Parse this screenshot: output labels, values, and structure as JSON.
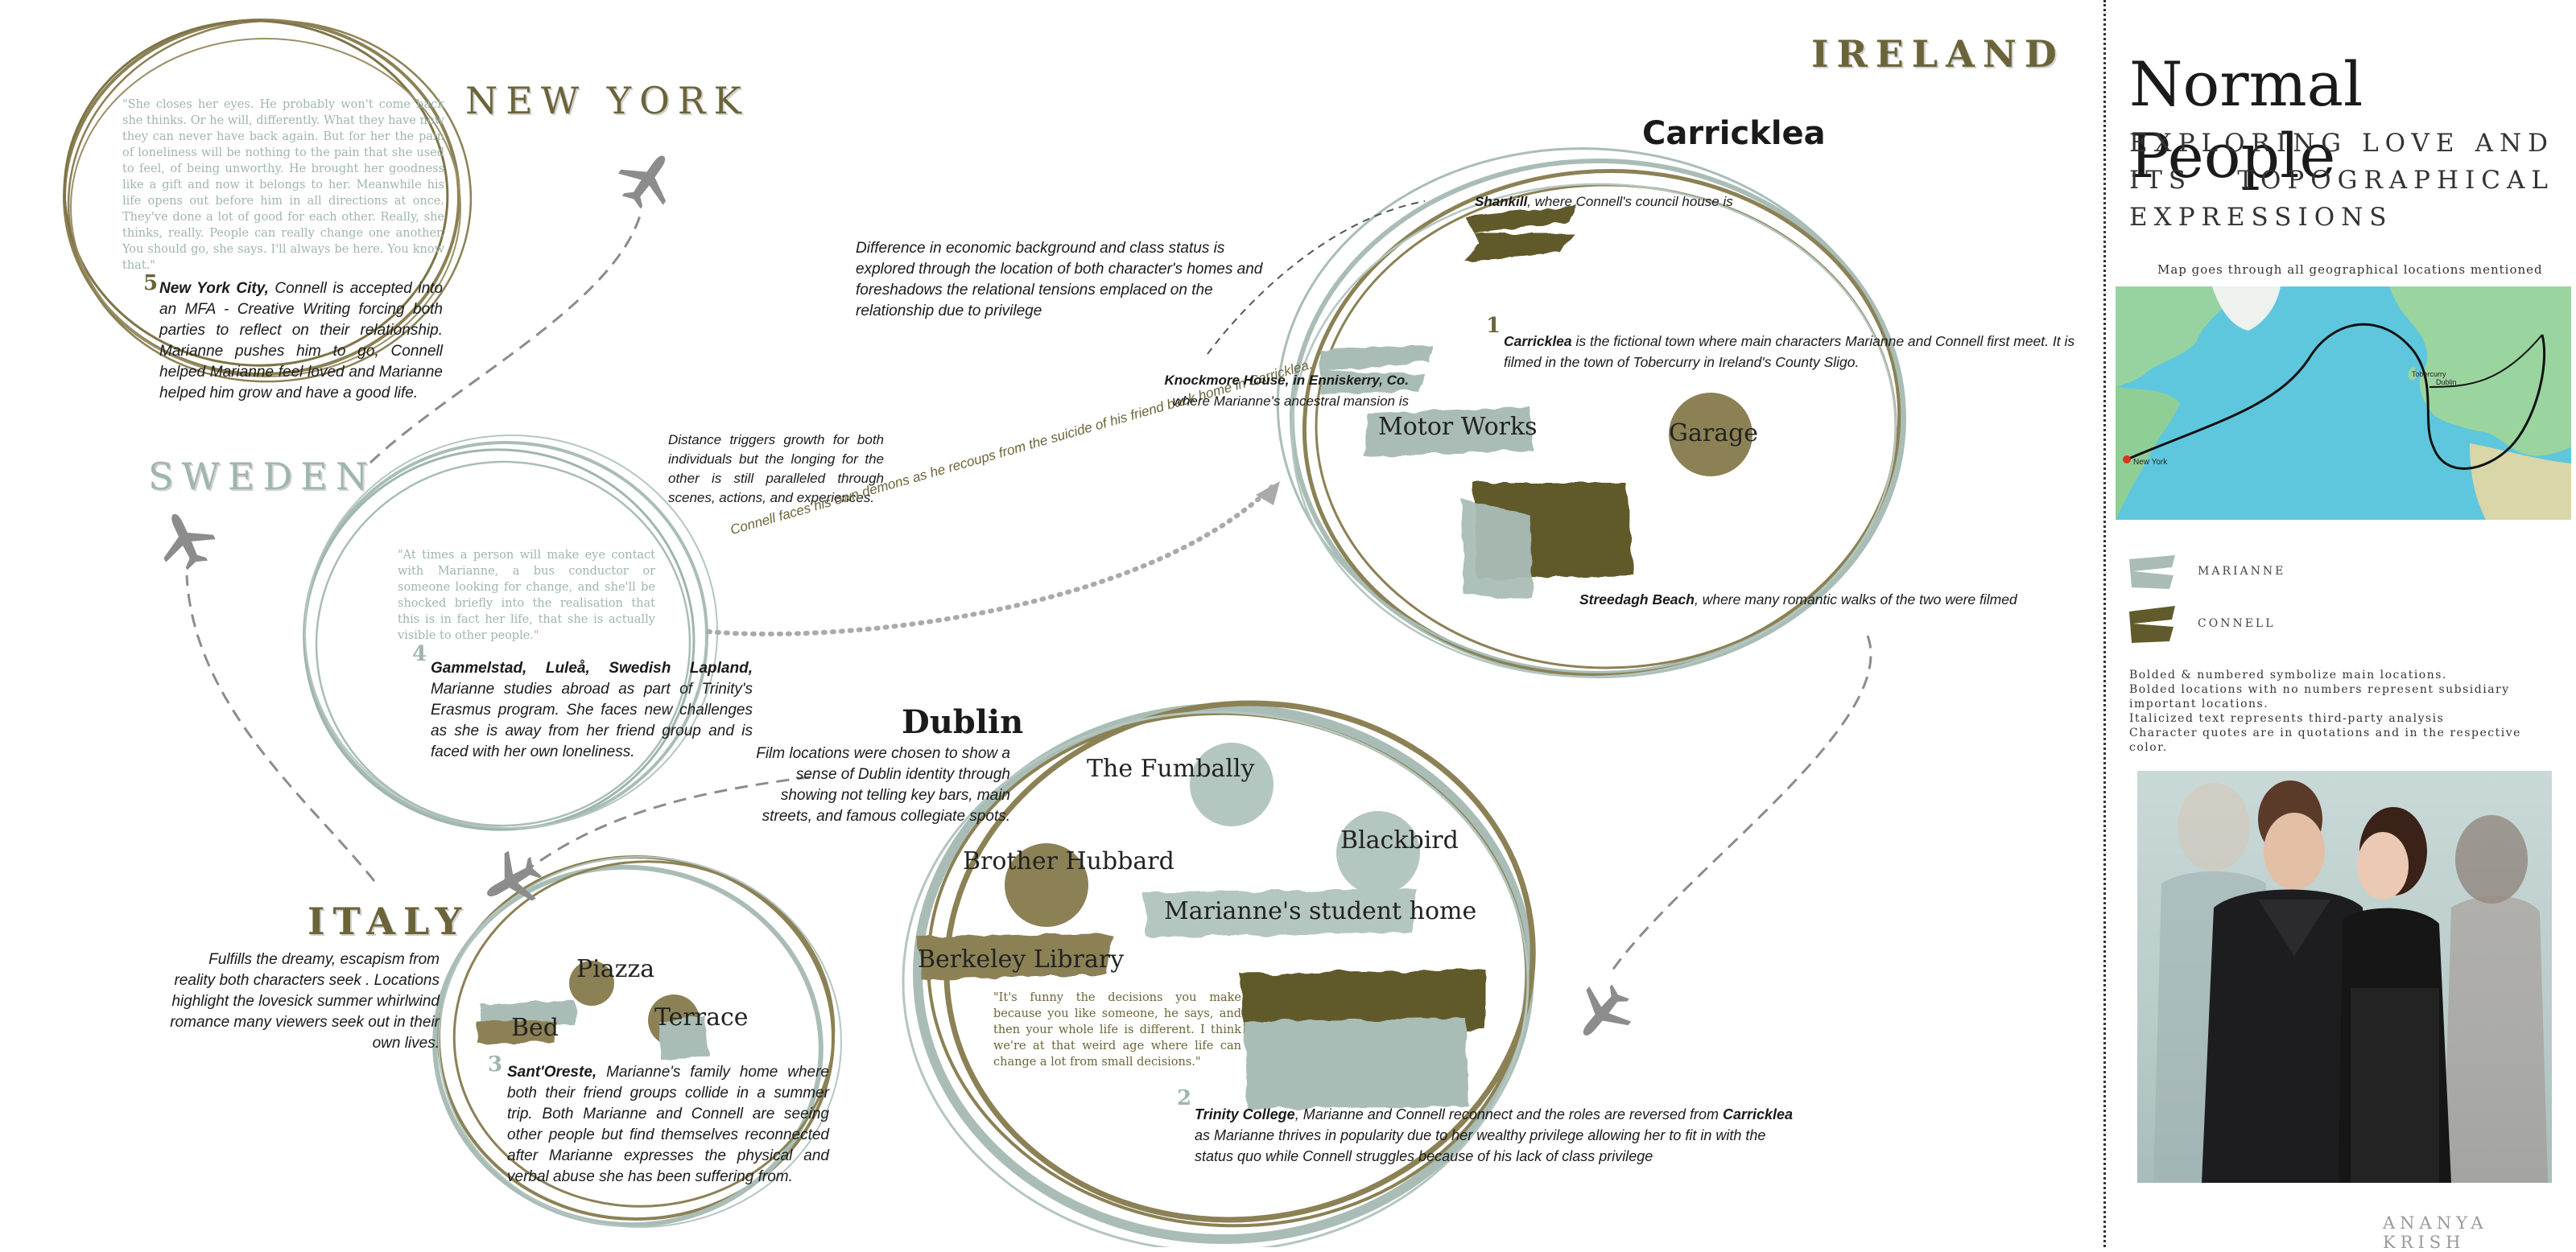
{
  "sidebar": {
    "title": "Normal People",
    "subtitle": "EXPLORING LOVE AND ITS TOPOGRAPHICAL EXPRESSIONS",
    "map_caption": "Map goes through all geographical locations mentioned",
    "map_labels": {
      "new_york": "New York",
      "dublin": "Dublin",
      "tobercurry": "Tobercurry"
    },
    "legend": [
      {
        "label": "MARIANNE",
        "color": "#a9bdb6"
      },
      {
        "label": "CONNELL",
        "color": "#615a2c"
      }
    ],
    "notes": [
      "Bolded & numbered symbolize main locations.",
      "Bolded locations with no numbers represent subsidiary important locations.",
      "Italicized text represents third-party analysis",
      "Character quotes are in quotations and in the respective color."
    ],
    "author": "ANANYA KRISH"
  },
  "ireland": {
    "label": "IRELAND"
  },
  "carricklea": {
    "title": "Carricklea",
    "analysis": "Difference in economic background and class status is explored through the location of both character's homes and foreshadows the relational tensions emplaced on the relationship due to privilege",
    "shankill_bold": "Shankill",
    "shankill_rest": ", where Connell's council house is",
    "knockmore_bold": "Knockmore House, in Enniskerry, Co.",
    "knockmore_rest": "where Marianne's ancestral mansion is",
    "number": "1",
    "main_bold": "Carricklea",
    "main_rest": " is the fictional town where main characters Marianne and Connell first meet. It is filmed in the town of Tobercurry in Ireland's County Sligo.",
    "motor_works": "Motor Works",
    "garage": "Garage",
    "streedagh_bold": "Streedagh Beach",
    "streedagh_rest": ", where many romantic walks of the two were filmed"
  },
  "new_york": {
    "label": "NEW YORK",
    "quote": "\"She closes her eyes. He probably won't come back she thinks. Or he will, differently. What they have now they can never have back again. But for her the pain of loneliness will be nothing to the pain that she used to feel, of being unworthy. He brought her goodness like a gift and now it belongs to her. Meanwhile his life opens out before him in all directions at once. They've done a lot of good for each other. Really, she thinks, really. People can really change one another. You should go, she says. I'll always be here. You know that.\"",
    "number": "5",
    "bold": "New York City,",
    "rest": " Connell is accepted into an MFA - Creative Writing forcing both parties to reflect on their relationship. Marianne pushes him to go, Connell helped Marianne feel loved and Marianne helped him grow and have a good life."
  },
  "sweden": {
    "label": "SWEDEN",
    "quote": "\"At times a person will make eye contact with Marianne, a bus conductor or someone looking for change, and she'll be shocked briefly into the realisation that this is in fact her life, that she is actually visible to other people.\"",
    "number": "4",
    "bold": "Gammelstad, Luleå, Swedish Lapland,",
    "rest": " Marianne studies abroad as part of Trinity's Erasmus program. She faces new challenges as she is away from her friend group and is faced with her own loneliness.",
    "distance_note": "Distance triggers growth for both individuals but the longing for the other is still paralleled through scenes, actions, and experiences.",
    "connell_path": "Connell faces his own demons as he recoups from the suicide of his friend back home in Carricklea."
  },
  "italy": {
    "label": "ITALY",
    "analysis": "Fulfills the dreamy, escapism from reality both characters seek . Locations highlight the lovesick summer whirlwind romance many viewers seek out in their own lives.",
    "piazza": "Piazza",
    "terrace": "Terrace",
    "bed": "Bed",
    "number": "3",
    "bold": "Sant'Oreste,",
    "rest": " Marianne's family home where both their friend groups collide in a summer trip. Both Marianne and Connell are seeing other people but find themselves reconnected after Marianne expresses the physical and verbal abuse she has been suffering from."
  },
  "dublin": {
    "title": "Dublin",
    "analysis": "Film locations were chosen to show a sense of Dublin identity through showing not telling key bars, main streets, and famous collegiate spots.",
    "fumbally": "The Fumbally",
    "blackbird": "Blackbird",
    "brother_hubbard": "Brother Hubbard",
    "student_home": "Marianne's student home",
    "berkeley": "Berkeley Library",
    "quote": "\"It's funny the decisions you make because you like someone, he says, and then your whole life is different. I think we're at that weird age where life can change a lot from small decisions.\"",
    "number": "2",
    "bold": "Trinity College",
    "rest1": ", Marianne and Connell reconnect and the roles are reversed from ",
    "bold2": "Carricklea",
    "rest2": " as Marianne thrives in popularity due to her wealthy privilege allowing her to fit in with the status quo while Connell struggles because of his lack of class privilege"
  }
}
